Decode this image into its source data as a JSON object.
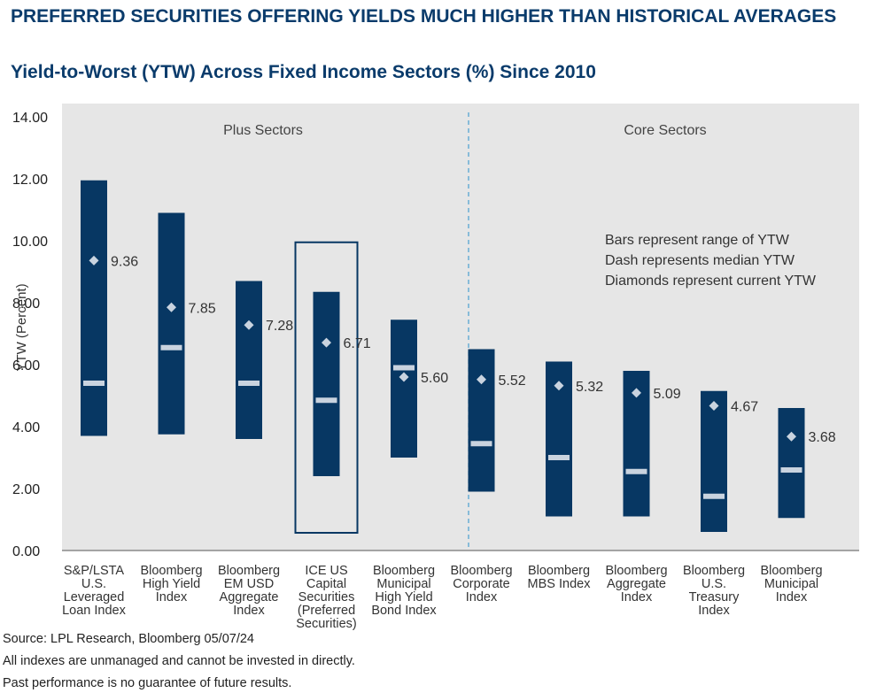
{
  "header": {
    "title": "PREFERRED SECURITIES OFFERING YIELDS MUCH HIGHER THAN HISTORICAL AVERAGES",
    "subtitle": "Yield-to-Worst (YTW) Across Fixed Income Sectors (%) Since 2010"
  },
  "colors": {
    "bar": "#073763",
    "median": "#c9d3df",
    "diamond": "#c9d3df",
    "plot_bg": "#e6e6e6",
    "title": "#0a3b6b",
    "divider": "#4a9fd0"
  },
  "chart_data": {
    "type": "range-bar",
    "title": "Yield-to-Worst (YTW) Across Fixed Income Sectors (%) Since 2010",
    "ylabel": "YTW (Percent)",
    "ylim": [
      0,
      14
    ],
    "yticks": [
      "0.00",
      "2.00",
      "4.00",
      "6.00",
      "8.00",
      "10.00",
      "12.00",
      "14.00"
    ],
    "grid": false,
    "sections": [
      {
        "label": "Plus Sectors",
        "categories": 5
      },
      {
        "label": "Core Sectors",
        "categories": 5
      }
    ],
    "legend_notes": [
      "Bars represent range of YTW",
      "Dash represents median YTW",
      "Diamonds represent current YTW"
    ],
    "categories": [
      {
        "label": [
          "S&P/LSTA",
          "U.S.",
          "Leveraged",
          "Loan Index"
        ],
        "min": 3.7,
        "max": 11.95,
        "median": 5.4,
        "current": 9.36,
        "current_label": "9.36",
        "highlight": false
      },
      {
        "label": [
          "Bloomberg",
          "High Yield",
          "Index"
        ],
        "min": 3.75,
        "max": 10.9,
        "median": 6.55,
        "current": 7.85,
        "current_label": "7.85",
        "highlight": false
      },
      {
        "label": [
          "Bloomberg",
          "EM USD",
          "Aggregate",
          "Index"
        ],
        "min": 3.6,
        "max": 8.7,
        "median": 5.4,
        "current": 7.28,
        "current_label": "7.28",
        "highlight": false
      },
      {
        "label": [
          "ICE US",
          "Capital",
          "Securities",
          "(Preferred",
          "Securities)"
        ],
        "min": 2.4,
        "max": 8.35,
        "median": 4.85,
        "current": 6.71,
        "current_label": "6.71",
        "highlight": true
      },
      {
        "label": [
          "Bloomberg",
          "Municipal",
          "High Yield",
          "Bond Index"
        ],
        "min": 3.0,
        "max": 7.45,
        "median": 5.9,
        "current": 5.6,
        "current_label": "5.60",
        "highlight": false
      },
      {
        "label": [
          "Bloomberg",
          "Corporate",
          "Index"
        ],
        "min": 1.9,
        "max": 6.5,
        "median": 3.45,
        "current": 5.52,
        "current_label": "5.52",
        "highlight": false
      },
      {
        "label": [
          "Bloomberg",
          "MBS Index"
        ],
        "min": 1.1,
        "max": 6.1,
        "median": 3.0,
        "current": 5.32,
        "current_label": "5.32",
        "highlight": false
      },
      {
        "label": [
          "Bloomberg",
          "Aggregate",
          "Index"
        ],
        "min": 1.1,
        "max": 5.8,
        "median": 2.55,
        "current": 5.09,
        "current_label": "5.09",
        "highlight": false
      },
      {
        "label": [
          "Bloomberg",
          "U.S.",
          "Treasury",
          "Index"
        ],
        "min": 0.6,
        "max": 5.15,
        "median": 1.75,
        "current": 4.67,
        "current_label": "4.67",
        "highlight": false
      },
      {
        "label": [
          "Bloomberg",
          "Municipal",
          "Index"
        ],
        "min": 1.05,
        "max": 4.6,
        "median": 2.6,
        "current": 3.68,
        "current_label": "3.68",
        "highlight": false
      }
    ]
  },
  "footer": {
    "source": "Source: LPL Research, Bloomberg 05/07/24",
    "note1": "All indexes are unmanaged and cannot be invested in directly.",
    "note2": "Past performance is no guarantee of future results."
  }
}
